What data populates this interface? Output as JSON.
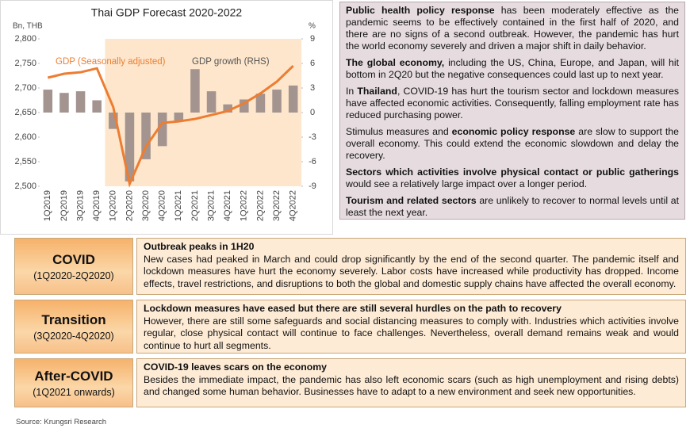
{
  "chart_data": {
    "type": "combo",
    "title": "Thai GDP Forecast 2020-2022",
    "y_label": "Bn, THB",
    "y2_label": "%",
    "categories": [
      "1Q2019",
      "2Q2019",
      "3Q2019",
      "4Q2019",
      "1Q2020",
      "2Q2020",
      "3Q2020",
      "4Q2020",
      "1Q2021",
      "2Q2021",
      "3Q2021",
      "4Q2021",
      "1Q2022",
      "2Q2022",
      "3Q2022",
      "4Q2022"
    ],
    "series": [
      {
        "name": "GDP (Seasonally adjusted)",
        "type": "line",
        "axis": "y",
        "color": "#ed7d31",
        "values": [
          2721,
          2729,
          2732,
          2740,
          2661,
          2505,
          2581,
          2629,
          2632,
          2637,
          2645,
          2653,
          2669,
          2689,
          2713,
          2745
        ]
      },
      {
        "name": "GDP growth (RHS)",
        "type": "bar",
        "axis": "y2",
        "color": "#a39490",
        "values": [
          2.8,
          2.4,
          2.6,
          1.5,
          -2.0,
          -8.4,
          -5.7,
          -4.1,
          -1.0,
          5.3,
          2.6,
          1.0,
          1.6,
          2.3,
          2.8,
          3.3
        ]
      }
    ],
    "ylim": [
      2500,
      2800
    ],
    "yticks": [
      {
        "value": 2500,
        "label": "2,500"
      },
      {
        "value": 2550,
        "label": "2,550"
      },
      {
        "value": 2600,
        "label": "2,600"
      },
      {
        "value": 2650,
        "label": "2,650"
      },
      {
        "value": 2700,
        "label": "2,700"
      },
      {
        "value": 2750,
        "label": "2,750"
      },
      {
        "value": 2800,
        "label": "2,800"
      }
    ],
    "y2lim": [
      -9,
      9
    ],
    "y2ticks": [
      -9,
      -6,
      -3,
      0,
      3,
      6,
      9
    ],
    "grid": false
  },
  "panel": {
    "paragraphs": [
      [
        {
          "text": "Public health policy response",
          "bold": true
        },
        {
          "text": " has been moderately effective as the pandemic seems to be effectively contained in the first half of 2020, and there are no signs of a second outbreak. However, the pandemic has hurt the world economy severely and driven a major shift in daily behavior.",
          "bold": false
        }
      ],
      [
        {
          "text": "The global economy,",
          "bold": true
        },
        {
          "text": " including the US, China, Europe, and Japan, will hit bottom in 2Q20 but the negative consequences could last up to next year.",
          "bold": false
        }
      ],
      [
        {
          "text": "In ",
          "bold": false
        },
        {
          "text": "Thailand",
          "bold": true
        },
        {
          "text": ", COVID-19 has hurt the tourism sector and lockdown measures have affected economic activities. Consequently, falling employment rate has reduced purchasing power.",
          "bold": false
        }
      ],
      [
        {
          "text": "Stimulus measures and ",
          "bold": false
        },
        {
          "text": "economic policy response",
          "bold": true
        },
        {
          "text": " are slow to support the overall economy. This could extend the economic slowdown and delay the recovery.",
          "bold": false
        }
      ],
      [
        {
          "text": "Sectors which activities involve physical contact or public gatherings",
          "bold": true
        },
        {
          "text": " would see a relatively large impact over a longer period.",
          "bold": false
        }
      ],
      [
        {
          "text": "Tourism and related sectors",
          "bold": true
        },
        {
          "text": " are unlikely to recover to normal levels until at least the next year.",
          "bold": false
        }
      ]
    ]
  },
  "phases": [
    {
      "title": "COVID",
      "period": "(1Q2020-2Q2020)",
      "heading": "Outbreak peaks in 1H20",
      "body": "New cases had peaked in March and could drop significantly by the end of the second quarter. The pandemic itself and lockdown measures have hurt the economy severely. Labor costs have increased while productivity has dropped. Income effects, travel restrictions, and disruptions to both the global and domestic supply chains have affected the overall economy."
    },
    {
      "title": "Transition",
      "period": "(3Q2020-4Q2020)",
      "heading": "Lockdown measures have eased but there are still several hurdles on the path to recovery",
      "body": "However, there are still some safeguards and social distancing measures to comply with. Industries which activities involve regular, close physical contact will continue to face challenges. Nevertheless, overall demand remains weak and would continue to hurt all segments."
    },
    {
      "title": "After-COVID",
      "period": "(1Q2021 onwards)",
      "heading": "COVID-19 leaves scars on the economy",
      "body": "Besides the immediate impact, the pandemic has also left economic scars (such as high unemployment and rising debts) and changed some human behavior. Businesses have to adapt to a new environment and seek new opportunities."
    }
  ],
  "source": "Source: Krungsri Research"
}
